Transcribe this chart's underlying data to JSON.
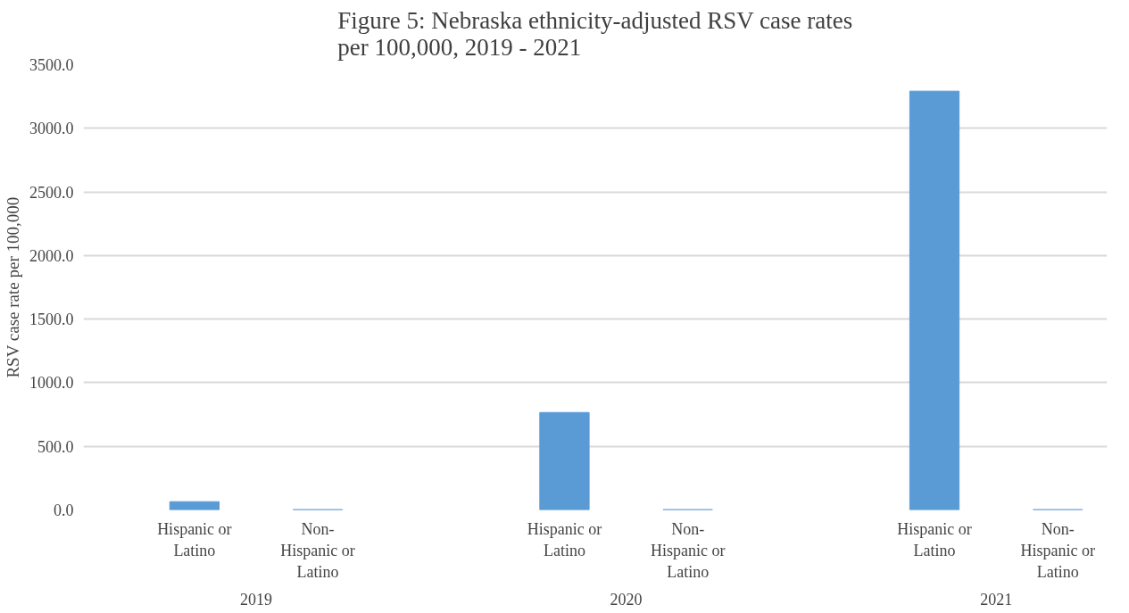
{
  "chart_data": {
    "type": "bar",
    "title": "Figure 5: Nebraska ethnicity-adjusted RSV case rates per 100,000, 2019 - 2021",
    "ylabel": "RSV case rate per 100,000",
    "categories": [
      "Hispanic or Latino",
      "Non-Hispanic or Latino",
      "Hispanic or Latino",
      "Non-Hispanic or Latino",
      "Hispanic or Latino",
      "Non-Hispanic or Latino"
    ],
    "annotations": [
      "2019",
      "2020",
      "2021"
    ],
    "values": [
      65,
      3,
      766,
      3,
      3292,
      3
    ],
    "color": "#5b9bd5",
    "ylim": [
      0,
      3500
    ],
    "yticks": [
      {
        "value": 0,
        "label": "0.0"
      },
      {
        "value": 500,
        "label": "500.0"
      },
      {
        "value": 1000,
        "label": "1000.0"
      },
      {
        "value": 1500,
        "label": "1500.0"
      },
      {
        "value": 2000,
        "label": "2000.0"
      },
      {
        "value": 2500,
        "label": "2500.0"
      },
      {
        "value": 3000,
        "label": "3000.0"
      },
      {
        "value": 3500,
        "label": "3500.0"
      }
    ],
    "grid": "y"
  }
}
